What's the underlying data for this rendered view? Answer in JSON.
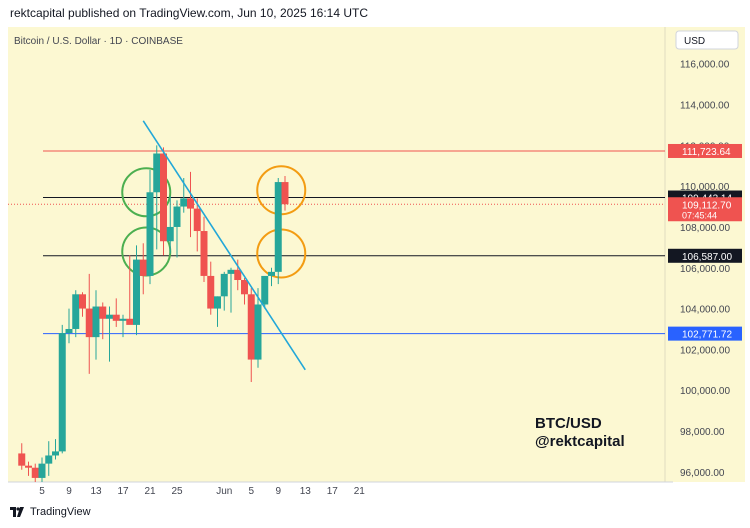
{
  "header": {
    "published": "rektcapital published on TradingView.com, Jun 10, 2025 16:14 UTC"
  },
  "footer": {
    "brand": "TradingView",
    "logo_icon": "tradingview-logo-icon"
  },
  "chart_data": {
    "type": "candlestick",
    "title": "Bitcoin / U.S. Dollar · 1D · COINBASE",
    "currency_button": "USD",
    "watermark": [
      "BTC/USD",
      "@rektcapital"
    ],
    "colors": {
      "background": "#FCF8D2",
      "up": "#26A69A",
      "down": "#EF5350",
      "trendline": "#22A7D8",
      "green_circles": "#4CAF50",
      "orange_circles": "#F39C12"
    },
    "ylim": [
      95500,
      117800
    ],
    "y_ticks": [
      96000,
      98000,
      100000,
      102000,
      104000,
      106000,
      108000,
      110000,
      112000,
      114000,
      116000
    ],
    "y_tick_labels": [
      "96,000.00",
      "98,000.00",
      "100,000.00",
      "102,000.00",
      "104,000.00",
      "106,000.00",
      "108,000.00",
      "110,000.00",
      "112,000.00",
      "114,000.00",
      "116,000.00"
    ],
    "x_dates": [
      "2025-05-05",
      "2025-05-09",
      "2025-05-13",
      "2025-05-17",
      "2025-05-21",
      "2025-05-25",
      "2025-06-01",
      "2025-06-05",
      "2025-06-09",
      "2025-06-13",
      "2025-06-17",
      "2025-06-21"
    ],
    "x_tick_labels": [
      "5",
      "9",
      "13",
      "17",
      "21",
      "25",
      "Jun",
      "5",
      "9",
      "13",
      "17",
      "21"
    ],
    "candles": [
      {
        "date": "2025-05-02",
        "open": 96900,
        "high": 97400,
        "low": 96100,
        "close": 96300
      },
      {
        "date": "2025-05-03",
        "open": 96300,
        "high": 96500,
        "low": 95800,
        "close": 96200
      },
      {
        "date": "2025-05-04",
        "open": 96200,
        "high": 96400,
        "low": 95500,
        "close": 95700
      },
      {
        "date": "2025-05-05",
        "open": 95700,
        "high": 96700,
        "low": 95500,
        "close": 96400
      },
      {
        "date": "2025-05-06",
        "open": 96400,
        "high": 97500,
        "low": 95800,
        "close": 96800
      },
      {
        "date": "2025-05-07",
        "open": 96800,
        "high": 97600,
        "low": 96600,
        "close": 97000
      },
      {
        "date": "2025-05-08",
        "open": 97000,
        "high": 103200,
        "low": 96900,
        "close": 102800
      },
      {
        "date": "2025-05-09",
        "open": 102800,
        "high": 104000,
        "low": 102300,
        "close": 103000
      },
      {
        "date": "2025-05-10",
        "open": 103000,
        "high": 104900,
        "low": 102600,
        "close": 104700
      },
      {
        "date": "2025-05-11",
        "open": 104700,
        "high": 104800,
        "low": 103600,
        "close": 104000
      },
      {
        "date": "2025-05-12",
        "open": 104000,
        "high": 105700,
        "low": 100800,
        "close": 102600
      },
      {
        "date": "2025-05-13",
        "open": 102600,
        "high": 104900,
        "low": 101500,
        "close": 104100
      },
      {
        "date": "2025-05-14",
        "open": 104100,
        "high": 104300,
        "low": 102500,
        "close": 103500
      },
      {
        "date": "2025-05-15",
        "open": 103500,
        "high": 104100,
        "low": 101400,
        "close": 103700
      },
      {
        "date": "2025-05-16",
        "open": 103700,
        "high": 104500,
        "low": 103100,
        "close": 103400
      },
      {
        "date": "2025-05-17",
        "open": 103400,
        "high": 103700,
        "low": 102600,
        "close": 103500
      },
      {
        "date": "2025-05-18",
        "open": 103500,
        "high": 106600,
        "low": 103300,
        "close": 103200
      },
      {
        "date": "2025-05-19",
        "open": 103200,
        "high": 107100,
        "low": 102700,
        "close": 106400
      },
      {
        "date": "2025-05-20",
        "open": 106400,
        "high": 107200,
        "low": 104700,
        "close": 105600
      },
      {
        "date": "2025-05-21",
        "open": 105600,
        "high": 110800,
        "low": 105200,
        "close": 109700
      },
      {
        "date": "2025-05-22",
        "open": 109700,
        "high": 112000,
        "low": 106900,
        "close": 111600
      },
      {
        "date": "2025-05-23",
        "open": 111600,
        "high": 111900,
        "low": 106600,
        "close": 107300
      },
      {
        "date": "2025-05-24",
        "open": 107300,
        "high": 109500,
        "low": 106700,
        "close": 108000
      },
      {
        "date": "2025-05-25",
        "open": 108000,
        "high": 109300,
        "low": 106500,
        "close": 109000
      },
      {
        "date": "2025-05-26",
        "open": 109000,
        "high": 110400,
        "low": 108700,
        "close": 109400
      },
      {
        "date": "2025-05-27",
        "open": 109400,
        "high": 110700,
        "low": 107500,
        "close": 108900
      },
      {
        "date": "2025-05-28",
        "open": 108900,
        "high": 109400,
        "low": 106800,
        "close": 107800
      },
      {
        "date": "2025-05-29",
        "open": 107800,
        "high": 108500,
        "low": 105300,
        "close": 105600
      },
      {
        "date": "2025-05-30",
        "open": 105600,
        "high": 106300,
        "low": 103700,
        "close": 104000
      },
      {
        "date": "2025-05-31",
        "open": 104000,
        "high": 104600,
        "low": 103100,
        "close": 104600
      },
      {
        "date": "2025-06-01",
        "open": 104600,
        "high": 105800,
        "low": 103900,
        "close": 105700
      },
      {
        "date": "2025-06-02",
        "open": 105700,
        "high": 106000,
        "low": 103800,
        "close": 105900
      },
      {
        "date": "2025-06-03",
        "open": 105900,
        "high": 106400,
        "low": 104900,
        "close": 105400
      },
      {
        "date": "2025-06-04",
        "open": 105400,
        "high": 105500,
        "low": 104200,
        "close": 104700
      },
      {
        "date": "2025-06-05",
        "open": 104700,
        "high": 105000,
        "low": 100400,
        "close": 101500
      },
      {
        "date": "2025-06-06",
        "open": 101500,
        "high": 105000,
        "low": 101100,
        "close": 104200
      },
      {
        "date": "2025-06-07",
        "open": 104200,
        "high": 105500,
        "low": 104000,
        "close": 105600
      },
      {
        "date": "2025-06-08",
        "open": 105600,
        "high": 106000,
        "low": 105100,
        "close": 105800
      },
      {
        "date": "2025-06-09",
        "open": 105800,
        "high": 110400,
        "low": 105200,
        "close": 110200
      },
      {
        "date": "2025-06-10",
        "open": 110200,
        "high": 110500,
        "low": 108800,
        "close": 109113
      }
    ],
    "horizontal_lines": [
      {
        "label": "111,723.64",
        "value": 111723.64,
        "color": "#EF5350",
        "tag_color": "#EF5350",
        "tag_text_color": "#ffffff"
      },
      {
        "label": "109,443.14",
        "value": 109443.14,
        "color": "#131722",
        "tag_color": "#131722",
        "tag_text_color": "#ffffff"
      },
      {
        "label": "106,587.00",
        "value": 106587.0,
        "color": "#131722",
        "tag_color": "#131722",
        "tag_text_color": "#ffffff"
      },
      {
        "label": "102,771.72",
        "value": 102771.72,
        "color": "#2962FF",
        "tag_color": "#2962FF",
        "tag_text_color": "#ffffff"
      }
    ],
    "current_price": {
      "label": "109,112.70",
      "countdown": "07:45:44",
      "value": 109112.7,
      "color": "#EF5350"
    },
    "trendline": {
      "from": {
        "date": "2025-05-20",
        "value": 113200
      },
      "to": {
        "date": "2025-06-13",
        "value": 101000
      }
    },
    "annotations": [
      {
        "type": "circle",
        "color": "#4CAF50",
        "date": "2025-05-20",
        "value": 109700
      },
      {
        "type": "circle",
        "color": "#4CAF50",
        "date": "2025-05-20",
        "value": 106800
      },
      {
        "type": "circle",
        "color": "#F39C12",
        "date": "2025-06-09",
        "value": 109800
      },
      {
        "type": "circle",
        "color": "#F39C12",
        "date": "2025-06-09",
        "value": 106700
      }
    ]
  }
}
